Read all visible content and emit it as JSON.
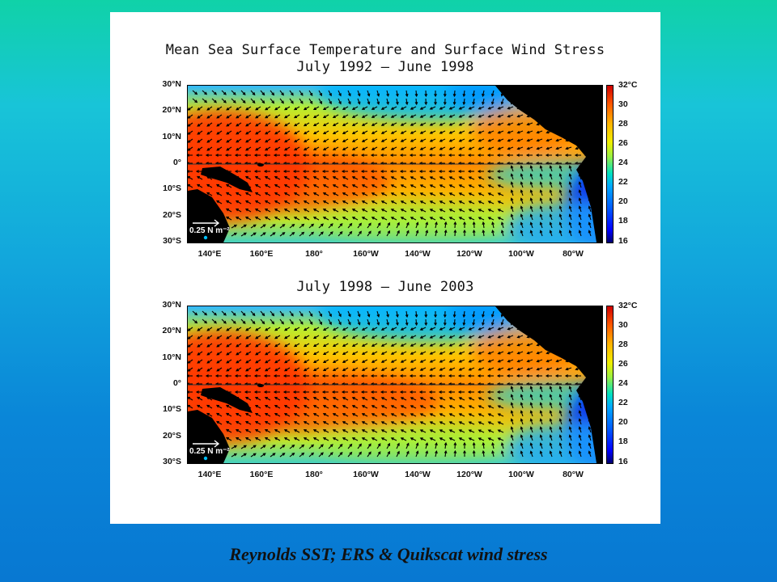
{
  "figure": {
    "title_line1": "Mean Sea Surface Temperature and Surface Wind Stress",
    "panels": [
      {
        "subtitle": "July 1992 – June 1998",
        "reference_vector": "0.25 N m⁻²"
      },
      {
        "subtitle": "July 1998 – June 2003",
        "reference_vector": "0.25 N m⁻²"
      }
    ],
    "lat_labels": [
      "30°N",
      "20°N",
      "10°N",
      "0°",
      "10°S",
      "20°S",
      "30°S"
    ],
    "lon_labels": [
      "140°E",
      "160°E",
      "180°",
      "160°W",
      "140°W",
      "120°W",
      "100°W",
      "80°W"
    ],
    "colorbar_labels": [
      "32°C",
      "30",
      "28",
      "26",
      "24",
      "22",
      "20",
      "18",
      "16"
    ],
    "lon_range": [
      "130°E",
      "70°W"
    ],
    "lat_range": [
      "30°S",
      "30°N"
    ],
    "colormap": [
      "#000070",
      "#0000ff",
      "#00aaff",
      "#00e0c0",
      "#9cf040",
      "#f0ef00",
      "#ffb400",
      "#ff5a00",
      "#d00000"
    ]
  },
  "caption": "Reynolds SST; ERS & Quikscat wind stress"
}
